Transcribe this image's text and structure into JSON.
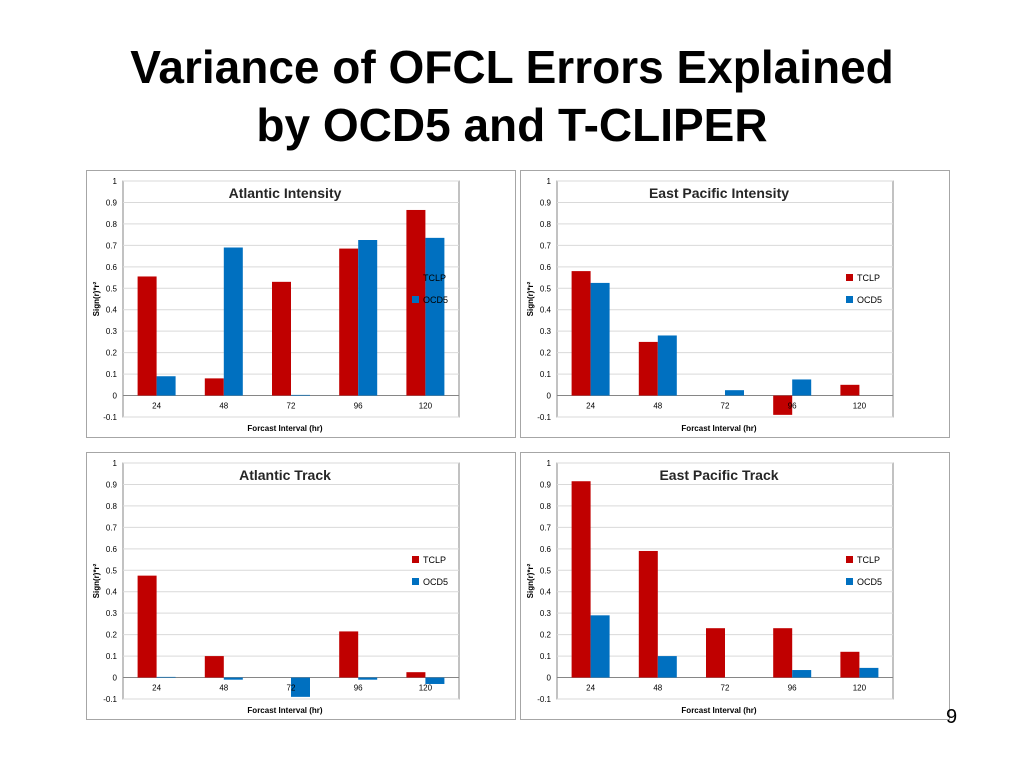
{
  "slide": {
    "title_line1": "Variance of OFCL Errors Explained",
    "title_line2": "by OCD5 and T-CLIPER",
    "page_number": "9"
  },
  "colors": {
    "tclp": "#c00000",
    "ocd5": "#0070c0",
    "grid": "#d9d9d9",
    "axis": "#868686"
  },
  "chart_data": [
    {
      "type": "bar",
      "title": "Atlantic Intensity",
      "xlabel": "Forcast Interval (hr)",
      "ylabel": "Sign(r)*r²",
      "categories": [
        "24",
        "48",
        "72",
        "96",
        "120"
      ],
      "series": [
        {
          "name": "TCLP",
          "values": [
            0.555,
            0.08,
            0.53,
            0.685,
            0.865
          ]
        },
        {
          "name": "OCD5",
          "values": [
            0.09,
            0.69,
            0.003,
            0.725,
            0.735
          ]
        }
      ],
      "ylim": [
        -0.1,
        1
      ],
      "yticks": [
        "-0.1",
        "0",
        "0.1",
        "0.2",
        "0.3",
        "0.4",
        "0.5",
        "0.6",
        "0.7",
        "0.8",
        "0.9",
        "1"
      ],
      "legend": "right",
      "grid": true
    },
    {
      "type": "bar",
      "title": "East Pacific Intensity",
      "xlabel": "Forcast Interval (hr)",
      "ylabel": "Sign(r)*r²",
      "categories": [
        "24",
        "48",
        "72",
        "96",
        "120"
      ],
      "series": [
        {
          "name": "TCLP",
          "values": [
            0.58,
            0.25,
            0.0,
            -0.09,
            0.05
          ]
        },
        {
          "name": "OCD5",
          "values": [
            0.525,
            0.28,
            0.025,
            0.075,
            0.0
          ]
        }
      ],
      "ylim": [
        -0.1,
        1
      ],
      "yticks": [
        "-0.1",
        "0",
        "0.1",
        "0.2",
        "0.3",
        "0.4",
        "0.5",
        "0.6",
        "0.7",
        "0.8",
        "0.9",
        "1"
      ],
      "legend": "right",
      "grid": true
    },
    {
      "type": "bar",
      "title": "Atlantic Track",
      "xlabel": "Forcast Interval (hr)",
      "ylabel": "Sign(r)*r²",
      "categories": [
        "24",
        "48",
        "72",
        "96",
        "120"
      ],
      "series": [
        {
          "name": "TCLP",
          "values": [
            0.475,
            0.1,
            0.0,
            0.215,
            0.025
          ]
        },
        {
          "name": "OCD5",
          "values": [
            0.003,
            -0.01,
            -0.09,
            -0.01,
            -0.03
          ]
        }
      ],
      "ylim": [
        -0.1,
        1
      ],
      "yticks": [
        "-0.1",
        "0",
        "0.1",
        "0.2",
        "0.3",
        "0.4",
        "0.5",
        "0.6",
        "0.7",
        "0.8",
        "0.9",
        "1"
      ],
      "legend": "right",
      "grid": true
    },
    {
      "type": "bar",
      "title": "East Pacific Track",
      "xlabel": "Forcast Interval (hr)",
      "ylabel": "Sign(r)*r²",
      "categories": [
        "24",
        "48",
        "72",
        "96",
        "120"
      ],
      "series": [
        {
          "name": "TCLP",
          "values": [
            0.915,
            0.59,
            0.23,
            0.23,
            0.12
          ]
        },
        {
          "name": "OCD5",
          "values": [
            0.29,
            0.1,
            0.0,
            0.035,
            0.045
          ]
        }
      ],
      "ylim": [
        -0.1,
        1
      ],
      "yticks": [
        "-0.1",
        "0",
        "0.1",
        "0.2",
        "0.3",
        "0.4",
        "0.5",
        "0.6",
        "0.7",
        "0.8",
        "0.9",
        "1"
      ],
      "legend": "right",
      "grid": true
    }
  ]
}
